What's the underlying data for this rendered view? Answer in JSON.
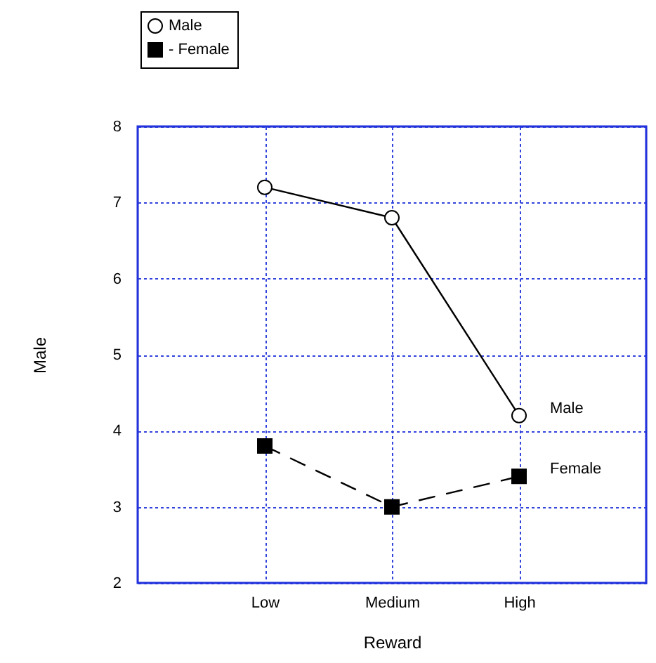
{
  "chart_data": {
    "type": "line",
    "xlabel": "Reward",
    "ylabel": "Male",
    "categories": [
      "Low",
      "Medium",
      "High"
    ],
    "series": [
      {
        "name": "Male",
        "color": "#000000",
        "values": [
          7.2,
          6.8,
          4.2
        ],
        "marker": "circle",
        "line_style": "solid"
      },
      {
        "name": "- Female",
        "color": "#000000",
        "values": [
          3.8,
          3.0,
          3.4
        ],
        "marker": "square",
        "line_style": "dashed"
      }
    ],
    "annotations": [
      {
        "text": "Male",
        "x": "High",
        "y": 4.2
      },
      {
        "text": "Female",
        "x": "High",
        "y": 3.4
      }
    ],
    "ylim": [
      2,
      8
    ],
    "yticks": [
      2,
      3,
      4,
      5,
      6,
      7,
      8
    ],
    "grid": true,
    "legend": "top left"
  }
}
